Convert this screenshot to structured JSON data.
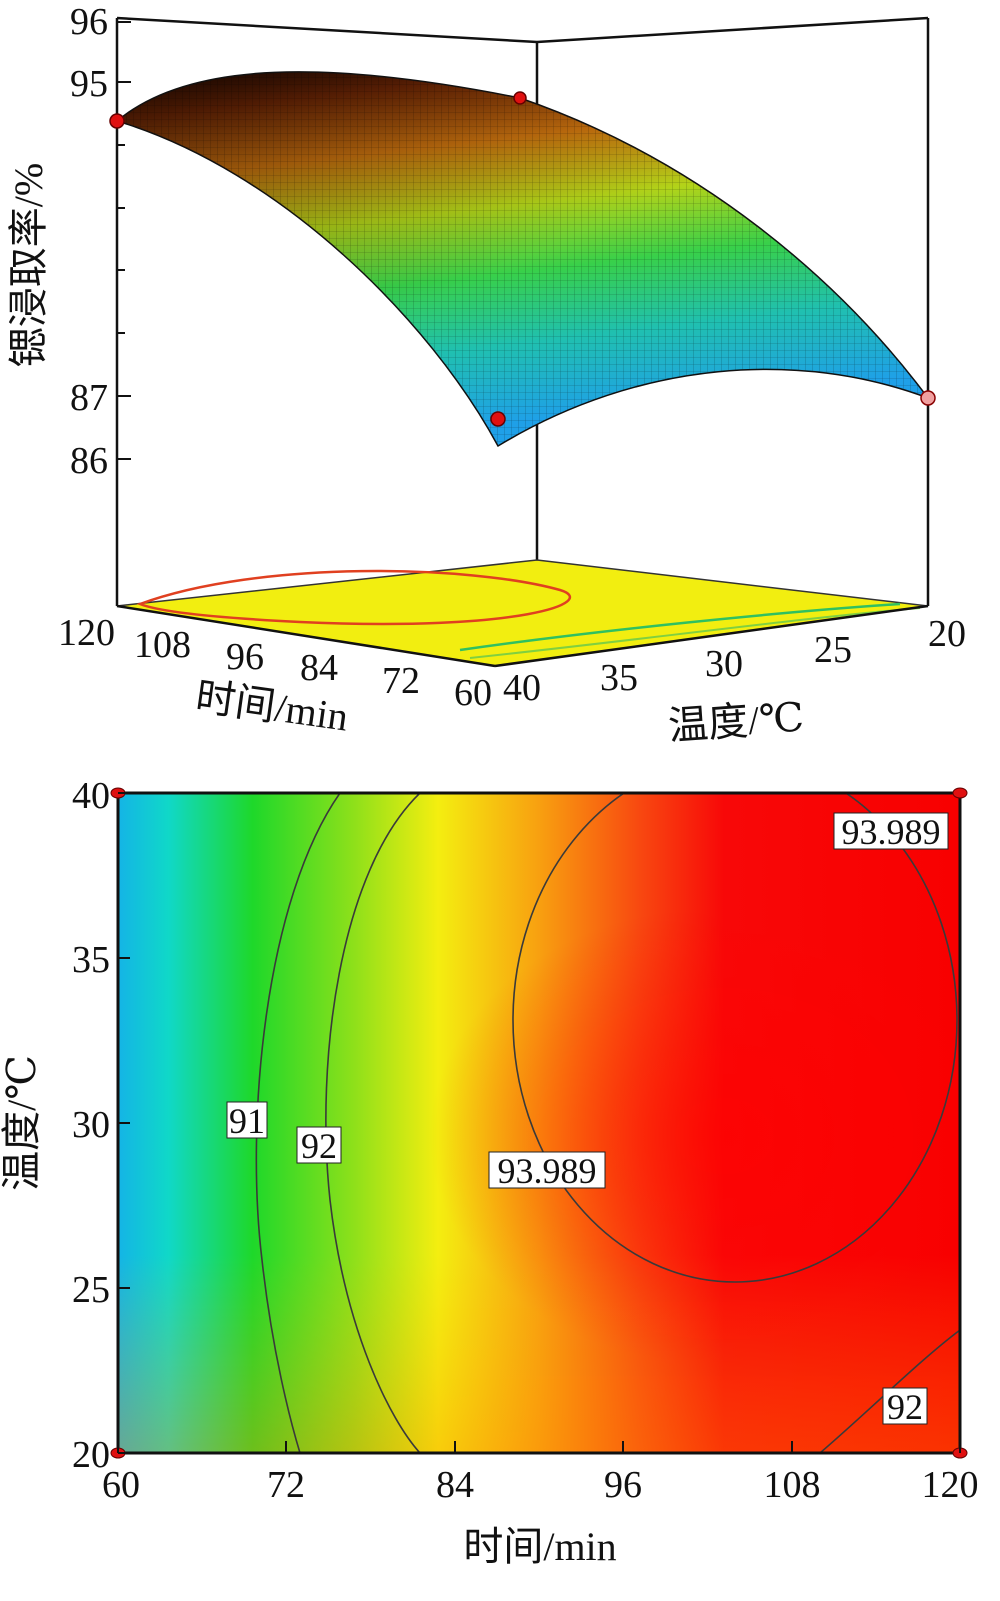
{
  "chart_data": [
    {
      "type": "surface",
      "title": "",
      "zlabel": "锶浸取率/%",
      "xlabel": "时间/min",
      "ylabel": "温度/℃",
      "z_ticks": [
        "96",
        "95",
        "87",
        "86"
      ],
      "x_ticks": [
        "120",
        "108",
        "96",
        "84",
        "72",
        "60"
      ],
      "y_ticks": [
        "40",
        "35",
        "30",
        "25",
        "20"
      ],
      "design_points": [
        {
          "time": 120,
          "temperature": 20,
          "value": 94.3
        },
        {
          "time": 120,
          "temperature": 40,
          "value": 93.9
        },
        {
          "time": 60,
          "temperature": 40,
          "value": 86.6
        },
        {
          "time": 60,
          "temperature": 20,
          "value": 87.0
        }
      ]
    },
    {
      "type": "contour",
      "title": "",
      "xlabel": "时间/min",
      "ylabel": "温度/℃",
      "xlim": [
        60,
        120
      ],
      "ylim": [
        20,
        40
      ],
      "x_ticks": [
        "60",
        "72",
        "84",
        "96",
        "108",
        "120"
      ],
      "y_ticks": [
        "20",
        "25",
        "30",
        "35",
        "40"
      ],
      "contour_levels": [
        {
          "label": "91",
          "value": 91
        },
        {
          "label": "92",
          "value": 92
        },
        {
          "label": "92",
          "value": 92
        },
        {
          "label": "93.989",
          "value": 93.989
        },
        {
          "label": "93.989",
          "value": 93.989
        }
      ],
      "corner_points": [
        {
          "time": 60,
          "temperature": 40
        },
        {
          "time": 120,
          "temperature": 40
        },
        {
          "time": 60,
          "temperature": 20
        },
        {
          "time": 120,
          "temperature": 20
        }
      ]
    }
  ]
}
